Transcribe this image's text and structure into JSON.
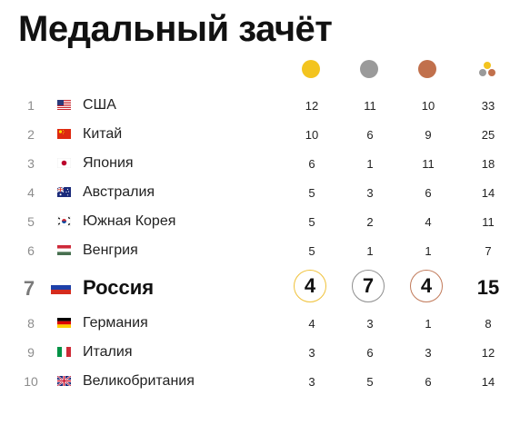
{
  "title": "Медальный зачёт",
  "header_icons": {
    "gold": "gold-medal-icon",
    "silver": "silver-medal-icon",
    "bronze": "bronze-medal-icon",
    "total": "total-medals-icon"
  },
  "colors": {
    "gold": "#f3c41f",
    "silver": "#9a9a9a",
    "bronze": "#c1704c"
  },
  "rows": [
    {
      "rank": "1",
      "country": "США",
      "flag": "us-flag-icon",
      "gold": "12",
      "silver": "11",
      "bronze": "10",
      "total": "33"
    },
    {
      "rank": "2",
      "country": "Китай",
      "flag": "china-flag-icon",
      "gold": "10",
      "silver": "6",
      "bronze": "9",
      "total": "25"
    },
    {
      "rank": "3",
      "country": "Япония",
      "flag": "japan-flag-icon",
      "gold": "6",
      "silver": "1",
      "bronze": "11",
      "total": "18"
    },
    {
      "rank": "4",
      "country": "Австралия",
      "flag": "australia-flag-icon",
      "gold": "5",
      "silver": "3",
      "bronze": "6",
      "total": "14"
    },
    {
      "rank": "5",
      "country": "Южная Корея",
      "flag": "south-korea-flag-icon",
      "gold": "5",
      "silver": "2",
      "bronze": "4",
      "total": "11"
    },
    {
      "rank": "6",
      "country": "Венгрия",
      "flag": "hungary-flag-icon",
      "gold": "5",
      "silver": "1",
      "bronze": "1",
      "total": "7"
    },
    {
      "rank": "7",
      "country": "Россия",
      "flag": "russia-flag-icon",
      "gold": "4",
      "silver": "7",
      "bronze": "4",
      "total": "15",
      "highlight": true
    },
    {
      "rank": "8",
      "country": "Германия",
      "flag": "germany-flag-icon",
      "gold": "4",
      "silver": "3",
      "bronze": "1",
      "total": "8"
    },
    {
      "rank": "9",
      "country": "Италия",
      "flag": "italy-flag-icon",
      "gold": "3",
      "silver": "6",
      "bronze": "3",
      "total": "12"
    },
    {
      "rank": "10",
      "country": "Великобритания",
      "flag": "uk-flag-icon",
      "gold": "3",
      "silver": "5",
      "bronze": "6",
      "total": "14"
    }
  ]
}
